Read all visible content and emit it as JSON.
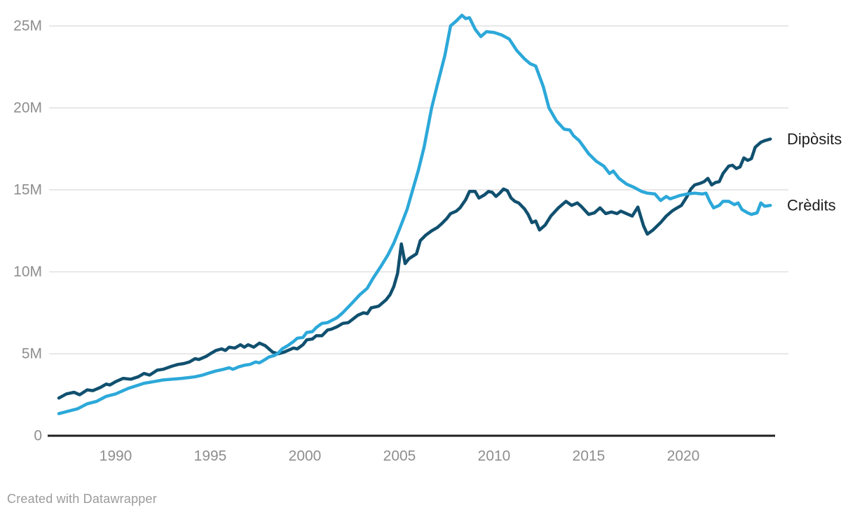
{
  "footer": {
    "credit": "Created with Datawrapper"
  },
  "colors": {
    "background": "#ffffff",
    "gridline": "#e0e0e0",
    "baseline": "#1f1f1f",
    "tick_label": "#8e8e8e",
    "series_label": "#1d1d1d",
    "credit_text": "#9b9b9b",
    "diposits_line": "#11506f",
    "credits_line": "#2ca8d9"
  },
  "chart_data": {
    "type": "line",
    "title": "",
    "xlabel": "",
    "ylabel": "",
    "unit": "M",
    "grid": "horizontal",
    "legend_position": "direct-labels-right",
    "xlim": [
      1986.8,
      2025.0
    ],
    "ylim": [
      0,
      25
    ],
    "x_ticks": [
      {
        "value": 1990,
        "label": "1990"
      },
      {
        "value": 1995,
        "label": "1995"
      },
      {
        "value": 2000,
        "label": "2000"
      },
      {
        "value": 2005,
        "label": "2005"
      },
      {
        "value": 2010,
        "label": "2010"
      },
      {
        "value": 2015,
        "label": "2015"
      },
      {
        "value": 2020,
        "label": "2020"
      }
    ],
    "y_ticks": [
      {
        "value": 0,
        "label": "0"
      },
      {
        "value": 5,
        "label": "5M"
      },
      {
        "value": 10,
        "label": "10M"
      },
      {
        "value": 15,
        "label": "15M"
      },
      {
        "value": 20,
        "label": "20M"
      },
      {
        "value": 25,
        "label": "25M"
      }
    ],
    "series": [
      {
        "name": "Dipòsits",
        "color": "#11506f",
        "points": [
          [
            1987.0,
            2.3
          ],
          [
            1987.4,
            2.55
          ],
          [
            1987.8,
            2.65
          ],
          [
            1988.1,
            2.5
          ],
          [
            1988.5,
            2.8
          ],
          [
            1988.8,
            2.75
          ],
          [
            1989.2,
            2.95
          ],
          [
            1989.5,
            3.15
          ],
          [
            1989.7,
            3.1
          ],
          [
            1990.0,
            3.3
          ],
          [
            1990.4,
            3.5
          ],
          [
            1990.8,
            3.45
          ],
          [
            1991.2,
            3.6
          ],
          [
            1991.5,
            3.8
          ],
          [
            1991.8,
            3.7
          ],
          [
            1992.2,
            4.0
          ],
          [
            1992.5,
            4.05
          ],
          [
            1993.0,
            4.25
          ],
          [
            1993.3,
            4.35
          ],
          [
            1993.6,
            4.4
          ],
          [
            1993.9,
            4.5
          ],
          [
            1994.2,
            4.7
          ],
          [
            1994.4,
            4.65
          ],
          [
            1994.8,
            4.85
          ],
          [
            1995.0,
            5.0
          ],
          [
            1995.3,
            5.2
          ],
          [
            1995.6,
            5.3
          ],
          [
            1995.8,
            5.2
          ],
          [
            1996.0,
            5.4
          ],
          [
            1996.3,
            5.35
          ],
          [
            1996.6,
            5.55
          ],
          [
            1996.8,
            5.4
          ],
          [
            1997.0,
            5.55
          ],
          [
            1997.3,
            5.4
          ],
          [
            1997.6,
            5.65
          ],
          [
            1997.9,
            5.5
          ],
          [
            1998.1,
            5.3
          ],
          [
            1998.3,
            5.1
          ],
          [
            1998.6,
            5.0
          ],
          [
            1998.9,
            5.1
          ],
          [
            1999.1,
            5.2
          ],
          [
            1999.4,
            5.35
          ],
          [
            1999.6,
            5.3
          ],
          [
            1999.9,
            5.55
          ],
          [
            2000.1,
            5.85
          ],
          [
            2000.4,
            5.9
          ],
          [
            2000.6,
            6.1
          ],
          [
            2000.9,
            6.1
          ],
          [
            2001.2,
            6.45
          ],
          [
            2001.4,
            6.5
          ],
          [
            2001.7,
            6.65
          ],
          [
            2002.0,
            6.85
          ],
          [
            2002.3,
            6.9
          ],
          [
            2002.8,
            7.35
          ],
          [
            2003.1,
            7.5
          ],
          [
            2003.3,
            7.45
          ],
          [
            2003.5,
            7.8
          ],
          [
            2003.9,
            7.9
          ],
          [
            2004.3,
            8.3
          ],
          [
            2004.5,
            8.6
          ],
          [
            2004.7,
            9.1
          ],
          [
            2004.9,
            9.9
          ],
          [
            2005.1,
            11.7
          ],
          [
            2005.3,
            10.5
          ],
          [
            2005.5,
            10.8
          ],
          [
            2005.9,
            11.1
          ],
          [
            2006.1,
            11.9
          ],
          [
            2006.4,
            12.25
          ],
          [
            2006.7,
            12.5
          ],
          [
            2007.0,
            12.7
          ],
          [
            2007.2,
            12.9
          ],
          [
            2007.5,
            13.25
          ],
          [
            2007.7,
            13.55
          ],
          [
            2008.0,
            13.7
          ],
          [
            2008.2,
            13.9
          ],
          [
            2008.5,
            14.4
          ],
          [
            2008.7,
            14.9
          ],
          [
            2009.0,
            14.9
          ],
          [
            2009.2,
            14.5
          ],
          [
            2009.5,
            14.7
          ],
          [
            2009.7,
            14.9
          ],
          [
            2009.9,
            14.85
          ],
          [
            2010.1,
            14.6
          ],
          [
            2010.3,
            14.8
          ],
          [
            2010.5,
            15.05
          ],
          [
            2010.7,
            14.95
          ],
          [
            2010.9,
            14.5
          ],
          [
            2011.1,
            14.3
          ],
          [
            2011.3,
            14.2
          ],
          [
            2011.6,
            13.85
          ],
          [
            2011.8,
            13.5
          ],
          [
            2012.0,
            13.0
          ],
          [
            2012.2,
            13.1
          ],
          [
            2012.4,
            12.55
          ],
          [
            2012.7,
            12.85
          ],
          [
            2013.0,
            13.4
          ],
          [
            2013.4,
            13.9
          ],
          [
            2013.8,
            14.3
          ],
          [
            2014.1,
            14.05
          ],
          [
            2014.4,
            14.2
          ],
          [
            2014.6,
            14.0
          ],
          [
            2015.0,
            13.5
          ],
          [
            2015.3,
            13.6
          ],
          [
            2015.6,
            13.9
          ],
          [
            2015.9,
            13.55
          ],
          [
            2016.2,
            13.65
          ],
          [
            2016.5,
            13.55
          ],
          [
            2016.7,
            13.7
          ],
          [
            2017.0,
            13.55
          ],
          [
            2017.3,
            13.4
          ],
          [
            2017.6,
            13.95
          ],
          [
            2017.9,
            12.8
          ],
          [
            2018.1,
            12.3
          ],
          [
            2018.4,
            12.55
          ],
          [
            2018.8,
            13.0
          ],
          [
            2019.1,
            13.4
          ],
          [
            2019.4,
            13.7
          ],
          [
            2019.6,
            13.85
          ],
          [
            2019.9,
            14.05
          ],
          [
            2020.2,
            14.6
          ],
          [
            2020.4,
            15.05
          ],
          [
            2020.6,
            15.3
          ],
          [
            2020.9,
            15.4
          ],
          [
            2021.1,
            15.5
          ],
          [
            2021.3,
            15.7
          ],
          [
            2021.5,
            15.3
          ],
          [
            2021.7,
            15.45
          ],
          [
            2021.9,
            15.5
          ],
          [
            2022.1,
            16.0
          ],
          [
            2022.4,
            16.45
          ],
          [
            2022.6,
            16.5
          ],
          [
            2022.8,
            16.3
          ],
          [
            2023.0,
            16.4
          ],
          [
            2023.2,
            16.95
          ],
          [
            2023.4,
            16.8
          ],
          [
            2023.6,
            16.9
          ],
          [
            2023.8,
            17.6
          ],
          [
            2024.1,
            17.9
          ],
          [
            2024.3,
            18.0
          ],
          [
            2024.6,
            18.1
          ]
        ]
      },
      {
        "name": "Crèdits",
        "color": "#2ca8d9",
        "points": [
          [
            1987.0,
            1.35
          ],
          [
            1987.5,
            1.5
          ],
          [
            1988.0,
            1.65
          ],
          [
            1988.5,
            1.95
          ],
          [
            1989.0,
            2.1
          ],
          [
            1989.5,
            2.4
          ],
          [
            1990.0,
            2.55
          ],
          [
            1990.4,
            2.75
          ],
          [
            1990.7,
            2.9
          ],
          [
            1991.1,
            3.05
          ],
          [
            1991.5,
            3.2
          ],
          [
            1992.0,
            3.3
          ],
          [
            1992.5,
            3.4
          ],
          [
            1993.0,
            3.45
          ],
          [
            1993.5,
            3.5
          ],
          [
            1993.9,
            3.55
          ],
          [
            1994.2,
            3.6
          ],
          [
            1994.6,
            3.7
          ],
          [
            1995.0,
            3.85
          ],
          [
            1995.3,
            3.95
          ],
          [
            1995.7,
            4.05
          ],
          [
            1996.0,
            4.15
          ],
          [
            1996.2,
            4.05
          ],
          [
            1996.5,
            4.2
          ],
          [
            1996.8,
            4.3
          ],
          [
            1997.1,
            4.35
          ],
          [
            1997.4,
            4.5
          ],
          [
            1997.6,
            4.45
          ],
          [
            1997.9,
            4.65
          ],
          [
            1998.1,
            4.8
          ],
          [
            1998.4,
            4.9
          ],
          [
            1998.6,
            5.05
          ],
          [
            1998.8,
            5.3
          ],
          [
            1999.1,
            5.5
          ],
          [
            1999.4,
            5.75
          ],
          [
            1999.6,
            5.95
          ],
          [
            1999.9,
            6.0
          ],
          [
            2000.1,
            6.3
          ],
          [
            2000.4,
            6.35
          ],
          [
            2000.6,
            6.6
          ],
          [
            2000.9,
            6.85
          ],
          [
            2001.2,
            6.9
          ],
          [
            2001.7,
            7.2
          ],
          [
            2002.0,
            7.5
          ],
          [
            2002.5,
            8.1
          ],
          [
            2002.9,
            8.6
          ],
          [
            2003.3,
            9.0
          ],
          [
            2003.6,
            9.6
          ],
          [
            2004.0,
            10.3
          ],
          [
            2004.4,
            11.05
          ],
          [
            2004.7,
            11.75
          ],
          [
            2005.0,
            12.6
          ],
          [
            2005.4,
            13.8
          ],
          [
            2005.7,
            15.0
          ],
          [
            2006.0,
            16.2
          ],
          [
            2006.3,
            17.6
          ],
          [
            2006.7,
            20.0
          ],
          [
            2007.0,
            21.4
          ],
          [
            2007.4,
            23.2
          ],
          [
            2007.7,
            25.0
          ],
          [
            2008.0,
            25.3
          ],
          [
            2008.3,
            25.65
          ],
          [
            2008.5,
            25.45
          ],
          [
            2008.7,
            25.5
          ],
          [
            2009.0,
            24.8
          ],
          [
            2009.3,
            24.35
          ],
          [
            2009.6,
            24.65
          ],
          [
            2010.0,
            24.6
          ],
          [
            2010.4,
            24.45
          ],
          [
            2010.8,
            24.2
          ],
          [
            2011.2,
            23.5
          ],
          [
            2011.6,
            23.0
          ],
          [
            2011.9,
            22.7
          ],
          [
            2012.2,
            22.55
          ],
          [
            2012.6,
            21.3
          ],
          [
            2012.9,
            20.0
          ],
          [
            2013.3,
            19.2
          ],
          [
            2013.7,
            18.7
          ],
          [
            2014.0,
            18.65
          ],
          [
            2014.2,
            18.3
          ],
          [
            2014.5,
            18.0
          ],
          [
            2015.0,
            17.2
          ],
          [
            2015.4,
            16.75
          ],
          [
            2015.8,
            16.45
          ],
          [
            2016.1,
            16.0
          ],
          [
            2016.3,
            16.15
          ],
          [
            2016.6,
            15.7
          ],
          [
            2017.0,
            15.35
          ],
          [
            2017.4,
            15.15
          ],
          [
            2017.8,
            14.9
          ],
          [
            2018.1,
            14.8
          ],
          [
            2018.5,
            14.75
          ],
          [
            2018.8,
            14.35
          ],
          [
            2019.1,
            14.6
          ],
          [
            2019.3,
            14.45
          ],
          [
            2019.8,
            14.65
          ],
          [
            2020.2,
            14.75
          ],
          [
            2020.6,
            14.8
          ],
          [
            2021.0,
            14.75
          ],
          [
            2021.2,
            14.8
          ],
          [
            2021.4,
            14.3
          ],
          [
            2021.6,
            13.9
          ],
          [
            2021.9,
            14.05
          ],
          [
            2022.1,
            14.3
          ],
          [
            2022.4,
            14.3
          ],
          [
            2022.7,
            14.1
          ],
          [
            2022.9,
            14.2
          ],
          [
            2023.1,
            13.8
          ],
          [
            2023.4,
            13.6
          ],
          [
            2023.6,
            13.5
          ],
          [
            2023.9,
            13.6
          ],
          [
            2024.1,
            14.2
          ],
          [
            2024.3,
            14.0
          ],
          [
            2024.6,
            14.05
          ]
        ]
      }
    ]
  }
}
